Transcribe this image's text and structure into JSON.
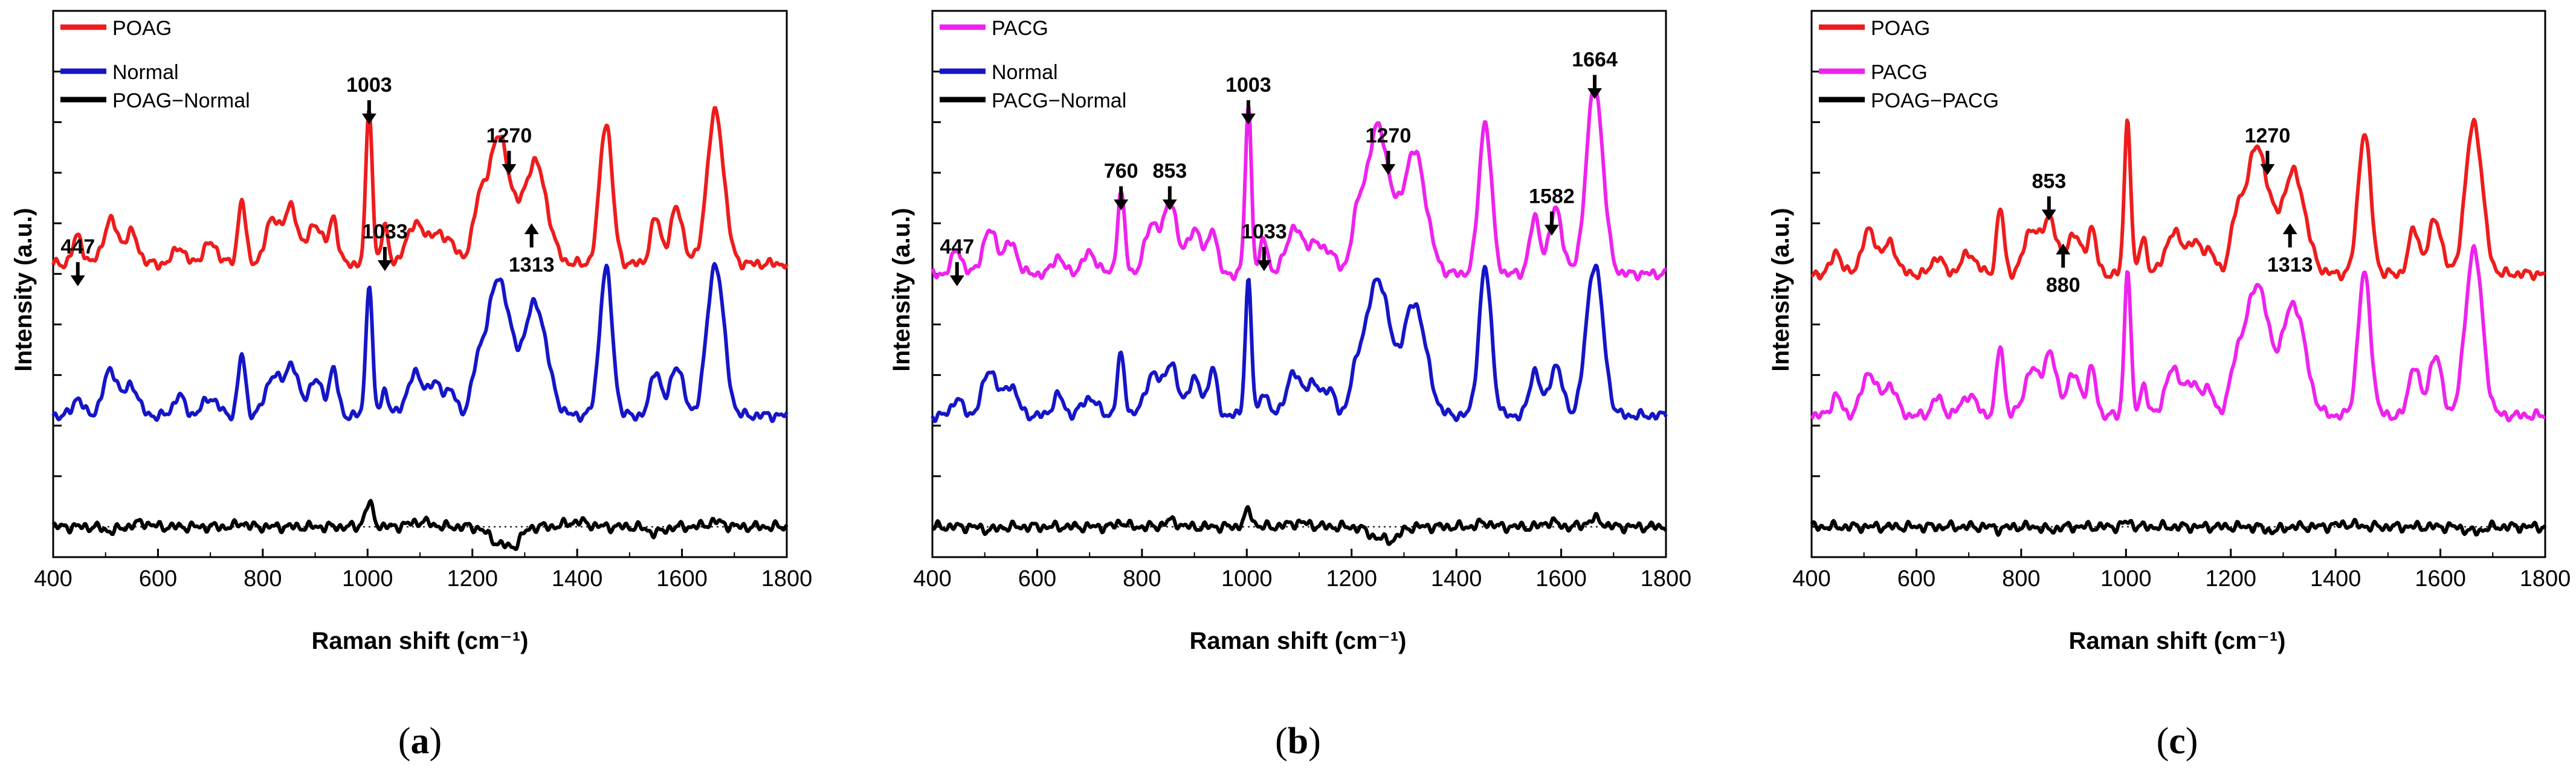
{
  "colors": {
    "red": "#ee1c1c",
    "blue": "#1515c8",
    "magenta": "#ee22ee",
    "black": "#000000"
  },
  "chart_data": [
    {
      "type": "line",
      "panel_label_open": "(",
      "panel_label_letter": "a",
      "panel_label_close": ")",
      "xlabel": "Raman shift (cm⁻¹)",
      "ylabel": "Intensity (a.u.)",
      "xlim": [
        400,
        1800
      ],
      "xticks": [
        "400",
        "600",
        "800",
        "1000",
        "1200",
        "1400",
        "1600",
        "1800"
      ],
      "legend": [
        {
          "name": "POAG",
          "color": "#ee1c1c"
        },
        {
          "name": "Normal",
          "color": "#1515c8"
        },
        {
          "name": "POAG−Normal",
          "color": "#000000"
        }
      ],
      "series": [
        {
          "name": "POAG",
          "color": "#ee1c1c",
          "offset": 5.2,
          "peaks": [
            [
              447,
              0.55,
              9
            ],
            [
              510,
              0.85,
              14
            ],
            [
              550,
              0.6,
              12
            ],
            [
              640,
              0.35,
              10
            ],
            [
              700,
              0.4,
              14
            ],
            [
              760,
              1.3,
              7
            ],
            [
              820,
              0.9,
              14
            ],
            [
              855,
              1.1,
              12
            ],
            [
              900,
              0.8,
              14
            ],
            [
              935,
              0.9,
              8
            ],
            [
              1003,
              3.1,
              6
            ],
            [
              1033,
              0.7,
              7
            ],
            [
              1090,
              0.8,
              15
            ],
            [
              1130,
              0.6,
              15
            ],
            [
              1160,
              0.4,
              10
            ],
            [
              1210,
              0.8,
              12
            ],
            [
              1250,
              2.5,
              22
            ],
            [
              1320,
              2.0,
              22
            ],
            [
              1455,
              2.8,
              12
            ],
            [
              1550,
              0.9,
              10
            ],
            [
              1590,
              1.1,
              12
            ],
            [
              1664,
              3.0,
              16
            ]
          ]
        },
        {
          "name": "Normal",
          "color": "#1515c8",
          "offset": 2.2,
          "peaks": [
            [
              447,
              0.35,
              9
            ],
            [
              510,
              0.9,
              14
            ],
            [
              550,
              0.6,
              12
            ],
            [
              640,
              0.4,
              10
            ],
            [
              700,
              0.35,
              14
            ],
            [
              760,
              1.2,
              7
            ],
            [
              820,
              0.8,
              14
            ],
            [
              855,
              1.0,
              12
            ],
            [
              900,
              0.7,
              14
            ],
            [
              935,
              0.9,
              8
            ],
            [
              1003,
              2.65,
              6
            ],
            [
              1033,
              0.5,
              7
            ],
            [
              1090,
              0.8,
              15
            ],
            [
              1130,
              0.6,
              15
            ],
            [
              1160,
              0.4,
              10
            ],
            [
              1210,
              0.7,
              12
            ],
            [
              1250,
              2.7,
              22
            ],
            [
              1320,
              2.2,
              22
            ],
            [
              1455,
              2.9,
              12
            ],
            [
              1550,
              0.9,
              10
            ],
            [
              1590,
              1.0,
              12
            ],
            [
              1664,
              3.0,
              16
            ]
          ]
        },
        {
          "name": "POAG−Normal",
          "color": "#000000",
          "offset": 0.0,
          "peaks": [
            [
              510,
              -0.08,
              14
            ],
            [
              570,
              0.08,
              14
            ],
            [
              760,
              0.08,
              8
            ],
            [
              1003,
              0.45,
              8
            ],
            [
              1100,
              0.1,
              20
            ],
            [
              1250,
              -0.3,
              18
            ],
            [
              1280,
              -0.3,
              14
            ],
            [
              1400,
              0.1,
              20
            ],
            [
              1550,
              -0.12,
              15
            ],
            [
              1664,
              0.1,
              15
            ]
          ]
        }
      ],
      "annotations": [
        {
          "label": "447",
          "x": 447,
          "y": 5.4,
          "dir": "down",
          "pos": "above"
        },
        {
          "label": "1003",
          "x": 1003,
          "y": 8.6,
          "dir": "down",
          "pos": "above"
        },
        {
          "label": "1270",
          "x": 1270,
          "y": 7.6,
          "dir": "down",
          "pos": "above"
        },
        {
          "label": "1033",
          "x": 1033,
          "y": 5.7,
          "dir": "down",
          "pos": "above"
        },
        {
          "label": "1313",
          "x": 1313,
          "y": 6.0,
          "dir": "up",
          "pos": "below"
        }
      ]
    },
    {
      "type": "line",
      "panel_label_open": "(",
      "panel_label_letter": "b",
      "panel_label_close": ")",
      "xlabel": "Raman shift (cm⁻¹)",
      "ylabel": "Intensity (a.u.)",
      "xlim": [
        400,
        1800
      ],
      "xticks": [
        "400",
        "600",
        "800",
        "1000",
        "1200",
        "1400",
        "1600",
        "1800"
      ],
      "legend": [
        {
          "name": "PACG",
          "color": "#ee22ee"
        },
        {
          "name": "Normal",
          "color": "#1515c8"
        },
        {
          "name": "PACG−Normal",
          "color": "#000000"
        }
      ],
      "series": [
        {
          "name": "PACG",
          "color": "#ee22ee",
          "offset": 5.0,
          "peaks": [
            [
              447,
              0.5,
              9
            ],
            [
              510,
              0.85,
              14
            ],
            [
              550,
              0.6,
              12
            ],
            [
              640,
              0.35,
              10
            ],
            [
              700,
              0.4,
              14
            ],
            [
              760,
              1.6,
              7
            ],
            [
              820,
              1.0,
              14
            ],
            [
              855,
              1.4,
              12
            ],
            [
              900,
              0.9,
              14
            ],
            [
              935,
              0.9,
              8
            ],
            [
              1003,
              3.3,
              6
            ],
            [
              1033,
              0.7,
              7
            ],
            [
              1090,
              0.9,
              15
            ],
            [
              1130,
              0.6,
              15
            ],
            [
              1160,
              0.4,
              10
            ],
            [
              1210,
              0.8,
              12
            ],
            [
              1250,
              2.9,
              22
            ],
            [
              1320,
              2.4,
              22
            ],
            [
              1455,
              3.0,
              12
            ],
            [
              1550,
              1.1,
              10
            ],
            [
              1590,
              1.3,
              12
            ],
            [
              1664,
              3.7,
              16
            ]
          ]
        },
        {
          "name": "Normal",
          "color": "#1515c8",
          "offset": 2.2,
          "peaks": [
            [
              447,
              0.35,
              9
            ],
            [
              510,
              0.9,
              14
            ],
            [
              550,
              0.6,
              12
            ],
            [
              640,
              0.4,
              10
            ],
            [
              700,
              0.35,
              14
            ],
            [
              760,
              1.2,
              7
            ],
            [
              820,
              0.8,
              14
            ],
            [
              855,
              1.0,
              12
            ],
            [
              900,
              0.7,
              14
            ],
            [
              935,
              0.9,
              8
            ],
            [
              1003,
              2.65,
              6
            ],
            [
              1033,
              0.5,
              7
            ],
            [
              1090,
              0.8,
              15
            ],
            [
              1130,
              0.6,
              15
            ],
            [
              1160,
              0.4,
              10
            ],
            [
              1210,
              0.7,
              12
            ],
            [
              1250,
              2.7,
              22
            ],
            [
              1320,
              2.2,
              22
            ],
            [
              1455,
              2.9,
              12
            ],
            [
              1550,
              0.9,
              10
            ],
            [
              1590,
              1.0,
              12
            ],
            [
              1664,
              3.0,
              16
            ]
          ]
        },
        {
          "name": "PACG−Normal",
          "color": "#000000",
          "offset": 0.0,
          "peaks": [
            [
              510,
              -0.06,
              14
            ],
            [
              760,
              0.1,
              8
            ],
            [
              855,
              0.12,
              12
            ],
            [
              1003,
              0.3,
              8
            ],
            [
              1100,
              0.08,
              20
            ],
            [
              1250,
              -0.2,
              18
            ],
            [
              1280,
              -0.2,
              14
            ],
            [
              1455,
              0.08,
              12
            ],
            [
              1580,
              0.1,
              12
            ],
            [
              1664,
              0.15,
              14
            ]
          ]
        }
      ],
      "annotations": [
        {
          "label": "447",
          "x": 447,
          "y": 5.4,
          "dir": "down",
          "pos": "above"
        },
        {
          "label": "760",
          "x": 760,
          "y": 6.9,
          "dir": "down",
          "pos": "above"
        },
        {
          "label": "853",
          "x": 853,
          "y": 6.9,
          "dir": "down",
          "pos": "above"
        },
        {
          "label": "1003",
          "x": 1003,
          "y": 8.6,
          "dir": "down",
          "pos": "above"
        },
        {
          "label": "1033",
          "x": 1033,
          "y": 5.7,
          "dir": "down",
          "pos": "above"
        },
        {
          "label": "1270",
          "x": 1270,
          "y": 7.6,
          "dir": "down",
          "pos": "above"
        },
        {
          "label": "1582",
          "x": 1582,
          "y": 6.4,
          "dir": "down",
          "pos": "above"
        },
        {
          "label": "1664",
          "x": 1664,
          "y": 9.1,
          "dir": "down",
          "pos": "above"
        }
      ]
    },
    {
      "type": "line",
      "panel_label_open": "(",
      "panel_label_letter": "c",
      "panel_label_close": ")",
      "xlabel": "Raman shift (cm⁻¹)",
      "ylabel": "Intensity (a.u.)",
      "xlim": [
        400,
        1800
      ],
      "xticks": [
        "400",
        "600",
        "800",
        "1000",
        "1200",
        "1400",
        "1600",
        "1800"
      ],
      "legend": [
        {
          "name": "POAG",
          "color": "#ee1c1c"
        },
        {
          "name": "PACG",
          "color": "#ee22ee"
        },
        {
          "name": "POAG−PACG",
          "color": "#000000"
        }
      ],
      "series": [
        {
          "name": "POAG",
          "color": "#ee1c1c",
          "offset": 5.0,
          "peaks": [
            [
              447,
              0.45,
              9
            ],
            [
              510,
              0.85,
              14
            ],
            [
              550,
              0.6,
              12
            ],
            [
              640,
              0.35,
              10
            ],
            [
              700,
              0.4,
              14
            ],
            [
              760,
              1.3,
              7
            ],
            [
              820,
              0.9,
              14
            ],
            [
              855,
              1.1,
              12
            ],
            [
              900,
              0.8,
              14
            ],
            [
              935,
              0.9,
              8
            ],
            [
              1003,
              3.1,
              6
            ],
            [
              1033,
              0.7,
              7
            ],
            [
              1090,
              0.8,
              15
            ],
            [
              1130,
              0.6,
              15
            ],
            [
              1160,
              0.4,
              10
            ],
            [
              1210,
              0.8,
              12
            ],
            [
              1250,
              2.5,
              22
            ],
            [
              1320,
              2.0,
              22
            ],
            [
              1455,
              2.8,
              12
            ],
            [
              1550,
              0.9,
              10
            ],
            [
              1590,
              1.1,
              12
            ],
            [
              1664,
              3.0,
              16
            ]
          ]
        },
        {
          "name": "PACG",
          "color": "#ee22ee",
          "offset": 2.2,
          "peaks": [
            [
              447,
              0.4,
              9
            ],
            [
              510,
              0.85,
              14
            ],
            [
              550,
              0.6,
              12
            ],
            [
              640,
              0.35,
              10
            ],
            [
              700,
              0.4,
              14
            ],
            [
              760,
              1.4,
              7
            ],
            [
              820,
              0.9,
              14
            ],
            [
              855,
              1.2,
              12
            ],
            [
              900,
              0.8,
              14
            ],
            [
              935,
              0.9,
              8
            ],
            [
              1003,
              2.9,
              6
            ],
            [
              1033,
              0.6,
              7
            ],
            [
              1090,
              0.9,
              15
            ],
            [
              1130,
              0.6,
              15
            ],
            [
              1160,
              0.4,
              10
            ],
            [
              1210,
              0.8,
              12
            ],
            [
              1250,
              2.6,
              22
            ],
            [
              1320,
              2.2,
              22
            ],
            [
              1455,
              2.8,
              12
            ],
            [
              1550,
              1.0,
              10
            ],
            [
              1590,
              1.2,
              12
            ],
            [
              1664,
              3.3,
              16
            ]
          ]
        },
        {
          "name": "POAG−PACG",
          "color": "#000000",
          "offset": 0.0,
          "peaks": [
            [
              760,
              -0.05,
              8
            ],
            [
              855,
              -0.06,
              12
            ],
            [
              1003,
              0.1,
              8
            ],
            [
              1280,
              -0.08,
              14
            ],
            [
              1420,
              0.05,
              20
            ],
            [
              1664,
              -0.1,
              15
            ]
          ]
        }
      ],
      "annotations": [
        {
          "label": "853",
          "x": 853,
          "y": 6.7,
          "dir": "down",
          "pos": "above"
        },
        {
          "label": "1270",
          "x": 1270,
          "y": 7.6,
          "dir": "down",
          "pos": "above"
        },
        {
          "label": "880",
          "x": 880,
          "y": 5.6,
          "dir": "up",
          "pos": "below"
        },
        {
          "label": "1313",
          "x": 1313,
          "y": 6.0,
          "dir": "up",
          "pos": "below"
        }
      ]
    }
  ]
}
